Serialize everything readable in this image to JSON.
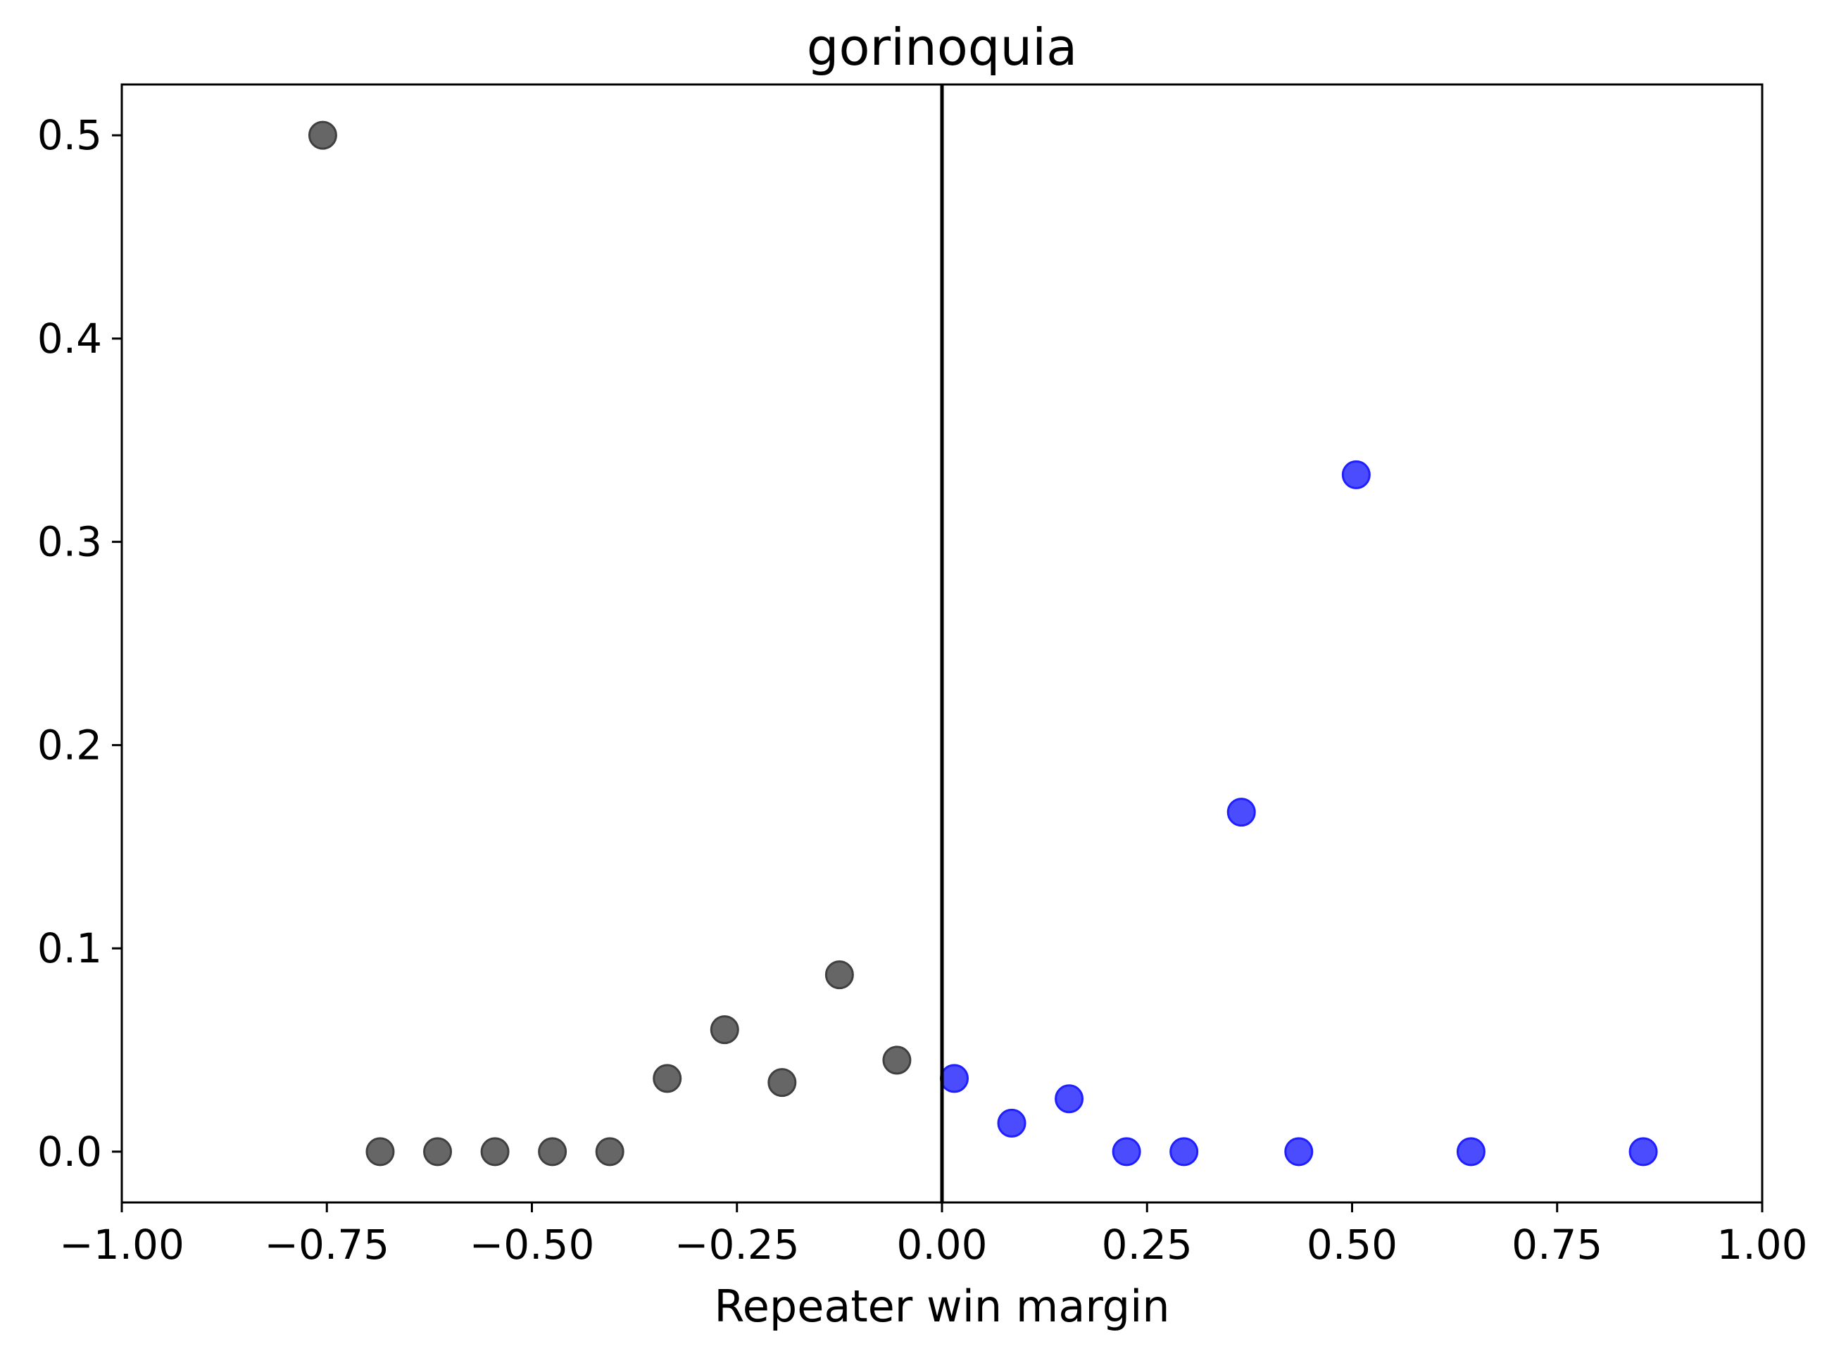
{
  "chart_data": {
    "type": "scatter",
    "title": "gorinoquia",
    "xlabel": "Repeater win margin",
    "ylabel": "",
    "xlim": [
      -1.0,
      1.0
    ],
    "ylim": [
      -0.025,
      0.525
    ],
    "xticks": [
      -1.0,
      -0.75,
      -0.5,
      -0.25,
      0.0,
      0.25,
      0.5,
      0.75,
      1.0
    ],
    "xtick_labels": [
      "−1.00",
      "−0.75",
      "−0.50",
      "−0.25",
      "0.00",
      "0.25",
      "0.50",
      "0.75",
      "1.00"
    ],
    "yticks": [
      0.0,
      0.1,
      0.2,
      0.3,
      0.4,
      0.5
    ],
    "ytick_labels": [
      "0.0",
      "0.1",
      "0.2",
      "0.3",
      "0.4",
      "0.5"
    ],
    "grid": false,
    "reference_line": {
      "x": 0.0,
      "color": "#000000"
    },
    "series": [
      {
        "color": "#404040",
        "x": [
          -0.755,
          -0.685,
          -0.615,
          -0.545,
          -0.475,
          -0.405,
          -0.335,
          -0.265,
          -0.195,
          -0.125,
          -0.055
        ],
        "y": [
          0.5,
          0.0,
          0.0,
          0.0,
          0.0,
          0.0,
          0.036,
          0.06,
          0.034,
          0.087,
          0.045
        ]
      },
      {
        "color": "#1f1fff",
        "x": [
          0.015,
          0.085,
          0.155,
          0.225,
          0.295,
          0.365,
          0.435,
          0.505,
          0.645,
          0.855
        ],
        "y": [
          0.036,
          0.014,
          0.026,
          0.0,
          0.0,
          0.167,
          0.0,
          0.333,
          0.0,
          0.0
        ]
      }
    ]
  }
}
